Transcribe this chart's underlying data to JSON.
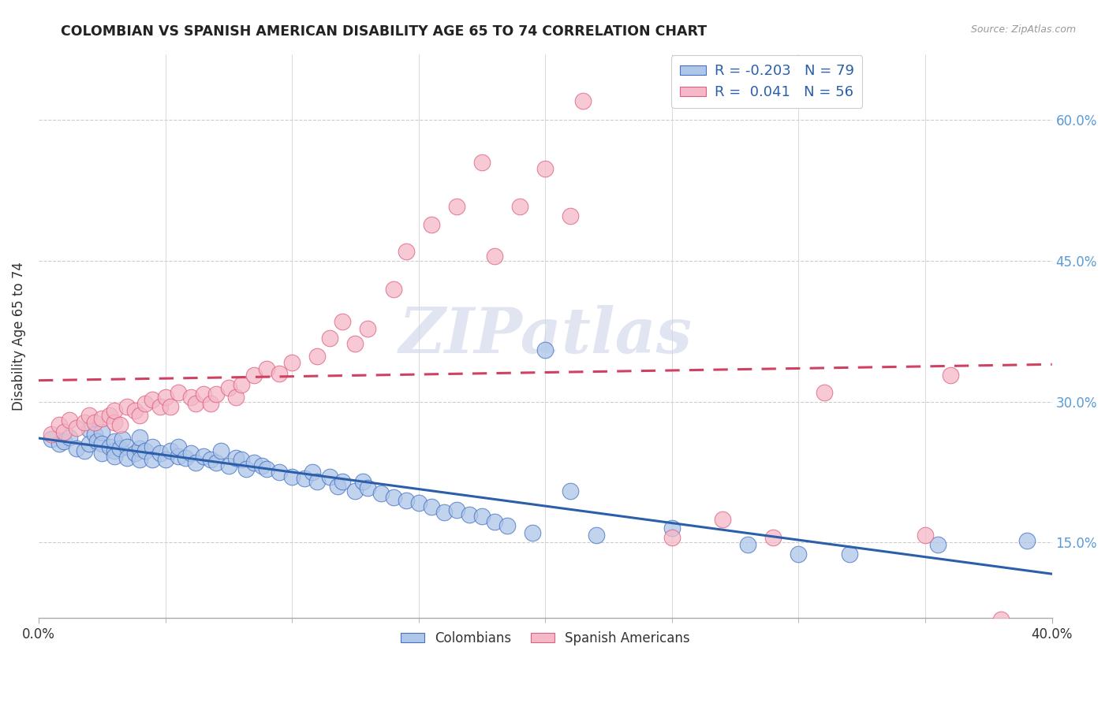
{
  "title": "COLOMBIAN VS SPANISH AMERICAN DISABILITY AGE 65 TO 74 CORRELATION CHART",
  "source": "Source: ZipAtlas.com",
  "ylabel": "Disability Age 65 to 74",
  "ytick_labels": [
    "15.0%",
    "30.0%",
    "45.0%",
    "60.0%"
  ],
  "ytick_values": [
    0.15,
    0.3,
    0.45,
    0.6
  ],
  "xlim": [
    0.0,
    0.4
  ],
  "ylim": [
    0.07,
    0.67
  ],
  "legend_label1": "Colombians",
  "legend_label2": "Spanish Americans",
  "r1": "-0.203",
  "n1": "79",
  "r2": "0.041",
  "n2": "56",
  "color_blue": "#aec6e8",
  "color_pink": "#f4b8c8",
  "edge_blue": "#4472c4",
  "edge_pink": "#e06080",
  "line_blue": "#2b5faa",
  "line_pink": "#d04060",
  "watermark_color": "#ccd5e8",
  "grid_color": "#cccccc",
  "blue_x": [
    0.005,
    0.008,
    0.01,
    0.012,
    0.015,
    0.018,
    0.02,
    0.02,
    0.022,
    0.023,
    0.025,
    0.025,
    0.025,
    0.028,
    0.03,
    0.03,
    0.03,
    0.032,
    0.033,
    0.035,
    0.035,
    0.038,
    0.04,
    0.04,
    0.04,
    0.042,
    0.045,
    0.045,
    0.048,
    0.05,
    0.052,
    0.055,
    0.055,
    0.058,
    0.06,
    0.062,
    0.065,
    0.068,
    0.07,
    0.072,
    0.075,
    0.078,
    0.08,
    0.082,
    0.085,
    0.088,
    0.09,
    0.095,
    0.1,
    0.105,
    0.108,
    0.11,
    0.115,
    0.118,
    0.12,
    0.125,
    0.128,
    0.13,
    0.135,
    0.14,
    0.145,
    0.15,
    0.155,
    0.16,
    0.165,
    0.17,
    0.175,
    0.18,
    0.185,
    0.195,
    0.2,
    0.21,
    0.22,
    0.25,
    0.28,
    0.3,
    0.32,
    0.355,
    0.39
  ],
  "blue_y": [
    0.26,
    0.255,
    0.258,
    0.262,
    0.25,
    0.248,
    0.27,
    0.255,
    0.265,
    0.258,
    0.268,
    0.255,
    0.245,
    0.252,
    0.248,
    0.258,
    0.242,
    0.25,
    0.26,
    0.252,
    0.24,
    0.245,
    0.25,
    0.238,
    0.262,
    0.248,
    0.252,
    0.238,
    0.245,
    0.238,
    0.248,
    0.242,
    0.252,
    0.24,
    0.245,
    0.235,
    0.242,
    0.238,
    0.235,
    0.248,
    0.232,
    0.24,
    0.238,
    0.228,
    0.235,
    0.232,
    0.228,
    0.225,
    0.22,
    0.218,
    0.225,
    0.215,
    0.22,
    0.21,
    0.215,
    0.205,
    0.215,
    0.208,
    0.202,
    0.198,
    0.195,
    0.192,
    0.188,
    0.182,
    0.185,
    0.18,
    0.178,
    0.172,
    0.168,
    0.16,
    0.355,
    0.205,
    0.158,
    0.165,
    0.148,
    0.138,
    0.138,
    0.148,
    0.152
  ],
  "pink_x": [
    0.005,
    0.008,
    0.01,
    0.012,
    0.015,
    0.018,
    0.02,
    0.022,
    0.025,
    0.028,
    0.03,
    0.03,
    0.032,
    0.035,
    0.038,
    0.04,
    0.042,
    0.045,
    0.048,
    0.05,
    0.052,
    0.055,
    0.06,
    0.062,
    0.065,
    0.068,
    0.07,
    0.075,
    0.078,
    0.08,
    0.085,
    0.09,
    0.095,
    0.1,
    0.11,
    0.115,
    0.12,
    0.125,
    0.13,
    0.14,
    0.145,
    0.155,
    0.165,
    0.175,
    0.18,
    0.19,
    0.2,
    0.21,
    0.215,
    0.25,
    0.27,
    0.29,
    0.31,
    0.35,
    0.36,
    0.38
  ],
  "pink_y": [
    0.265,
    0.275,
    0.268,
    0.28,
    0.272,
    0.278,
    0.285,
    0.278,
    0.282,
    0.285,
    0.278,
    0.29,
    0.275,
    0.295,
    0.29,
    0.285,
    0.298,
    0.302,
    0.295,
    0.305,
    0.295,
    0.31,
    0.305,
    0.298,
    0.308,
    0.298,
    0.308,
    0.315,
    0.305,
    0.318,
    0.328,
    0.335,
    0.33,
    0.342,
    0.348,
    0.368,
    0.385,
    0.362,
    0.378,
    0.42,
    0.46,
    0.488,
    0.508,
    0.555,
    0.455,
    0.508,
    0.548,
    0.498,
    0.62,
    0.155,
    0.175,
    0.155,
    0.31,
    0.158,
    0.328,
    0.068
  ]
}
